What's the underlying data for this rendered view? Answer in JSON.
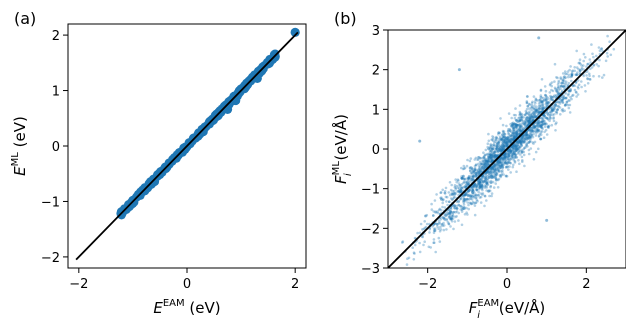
{
  "chart_data": [
    {
      "type": "scatter",
      "panel_label": "(a)",
      "xlabel": {
        "main": "E",
        "sup": "EAM",
        "unit": " (eV)"
      },
      "ylabel": {
        "main": "E",
        "sup": "ML",
        "unit": " (eV)"
      },
      "xlim": [
        -2.2,
        2.2
      ],
      "ylim": [
        -2.2,
        2.2
      ],
      "xticks": [
        -2,
        0,
        2
      ],
      "yticks": [
        -2,
        -1,
        0,
        1,
        2
      ],
      "xtick_labels": [
        "−2",
        "0",
        "2"
      ],
      "ytick_labels": [
        "−2",
        "−1",
        "0",
        "1",
        "2"
      ],
      "identity_line": [
        -2.05,
        2.05
      ],
      "marker_color": "#1f77b4",
      "marker": "large-filled",
      "points_x_range": [
        -1.22,
        2.0
      ],
      "points": [
        [
          -1.22,
          -1.22
        ],
        [
          -1.15,
          -1.14
        ],
        [
          -1.08,
          -1.06
        ],
        [
          -1.0,
          -0.98
        ],
        [
          -0.93,
          -0.92
        ],
        [
          -0.86,
          -0.84
        ],
        [
          -0.78,
          -0.76
        ],
        [
          -0.7,
          -0.68
        ],
        [
          -0.62,
          -0.6
        ],
        [
          -0.55,
          -0.54
        ],
        [
          -0.48,
          -0.46
        ],
        [
          -0.4,
          -0.38
        ],
        [
          -0.33,
          -0.33
        ],
        [
          -0.26,
          -0.24
        ],
        [
          -0.18,
          -0.16
        ],
        [
          -0.1,
          -0.1
        ],
        [
          -0.03,
          -0.02
        ],
        [
          0.05,
          0.05
        ],
        [
          0.12,
          0.14
        ],
        [
          0.2,
          0.2
        ],
        [
          0.28,
          0.3
        ],
        [
          0.35,
          0.35
        ],
        [
          0.42,
          0.44
        ],
        [
          0.5,
          0.5
        ],
        [
          0.58,
          0.58
        ],
        [
          0.65,
          0.67
        ],
        [
          0.72,
          0.74
        ],
        [
          0.8,
          0.8
        ],
        [
          0.88,
          0.9
        ],
        [
          0.95,
          0.96
        ],
        [
          1.02,
          1.04
        ],
        [
          1.1,
          1.12
        ],
        [
          1.18,
          1.2
        ],
        [
          1.25,
          1.28
        ],
        [
          1.32,
          1.34
        ],
        [
          1.4,
          1.42
        ],
        [
          1.5,
          1.48
        ],
        [
          1.58,
          1.56
        ],
        [
          1.62,
          1.6
        ],
        [
          2.0,
          2.05
        ],
        [
          0.9,
          0.82
        ],
        [
          0.75,
          0.66
        ],
        [
          0.3,
          0.26
        ],
        [
          -0.6,
          -0.64
        ],
        [
          1.3,
          1.22
        ]
      ]
    },
    {
      "type": "scatter",
      "panel_label": "(b)",
      "xlabel": {
        "main": "F",
        "sub": "i",
        "sup": "EAM",
        "unit": " (eV/Å)"
      },
      "ylabel": {
        "main": "F",
        "sub": "i",
        "sup": "ML",
        "unit": " (eV/Å)"
      },
      "xlim": [
        -3,
        3
      ],
      "ylim": [
        -3,
        3
      ],
      "xticks": [
        -2,
        0,
        2
      ],
      "yticks": [
        -3,
        -2,
        -1,
        0,
        1,
        2,
        3
      ],
      "xtick_labels": [
        "−2",
        "0",
        "2"
      ],
      "ytick_labels": [
        "−3",
        "−2",
        "−1",
        "0",
        "1",
        "2",
        "3"
      ],
      "identity_line": [
        -3,
        3
      ],
      "marker_color": "#1f77b4",
      "marker": "small-translucent",
      "point_count": 2500,
      "notable_outliers": [
        [
          -1.2,
          2.0
        ],
        [
          0.8,
          2.8
        ],
        [
          -2.2,
          0.2
        ],
        [
          1.0,
          -1.8
        ]
      ]
    }
  ]
}
